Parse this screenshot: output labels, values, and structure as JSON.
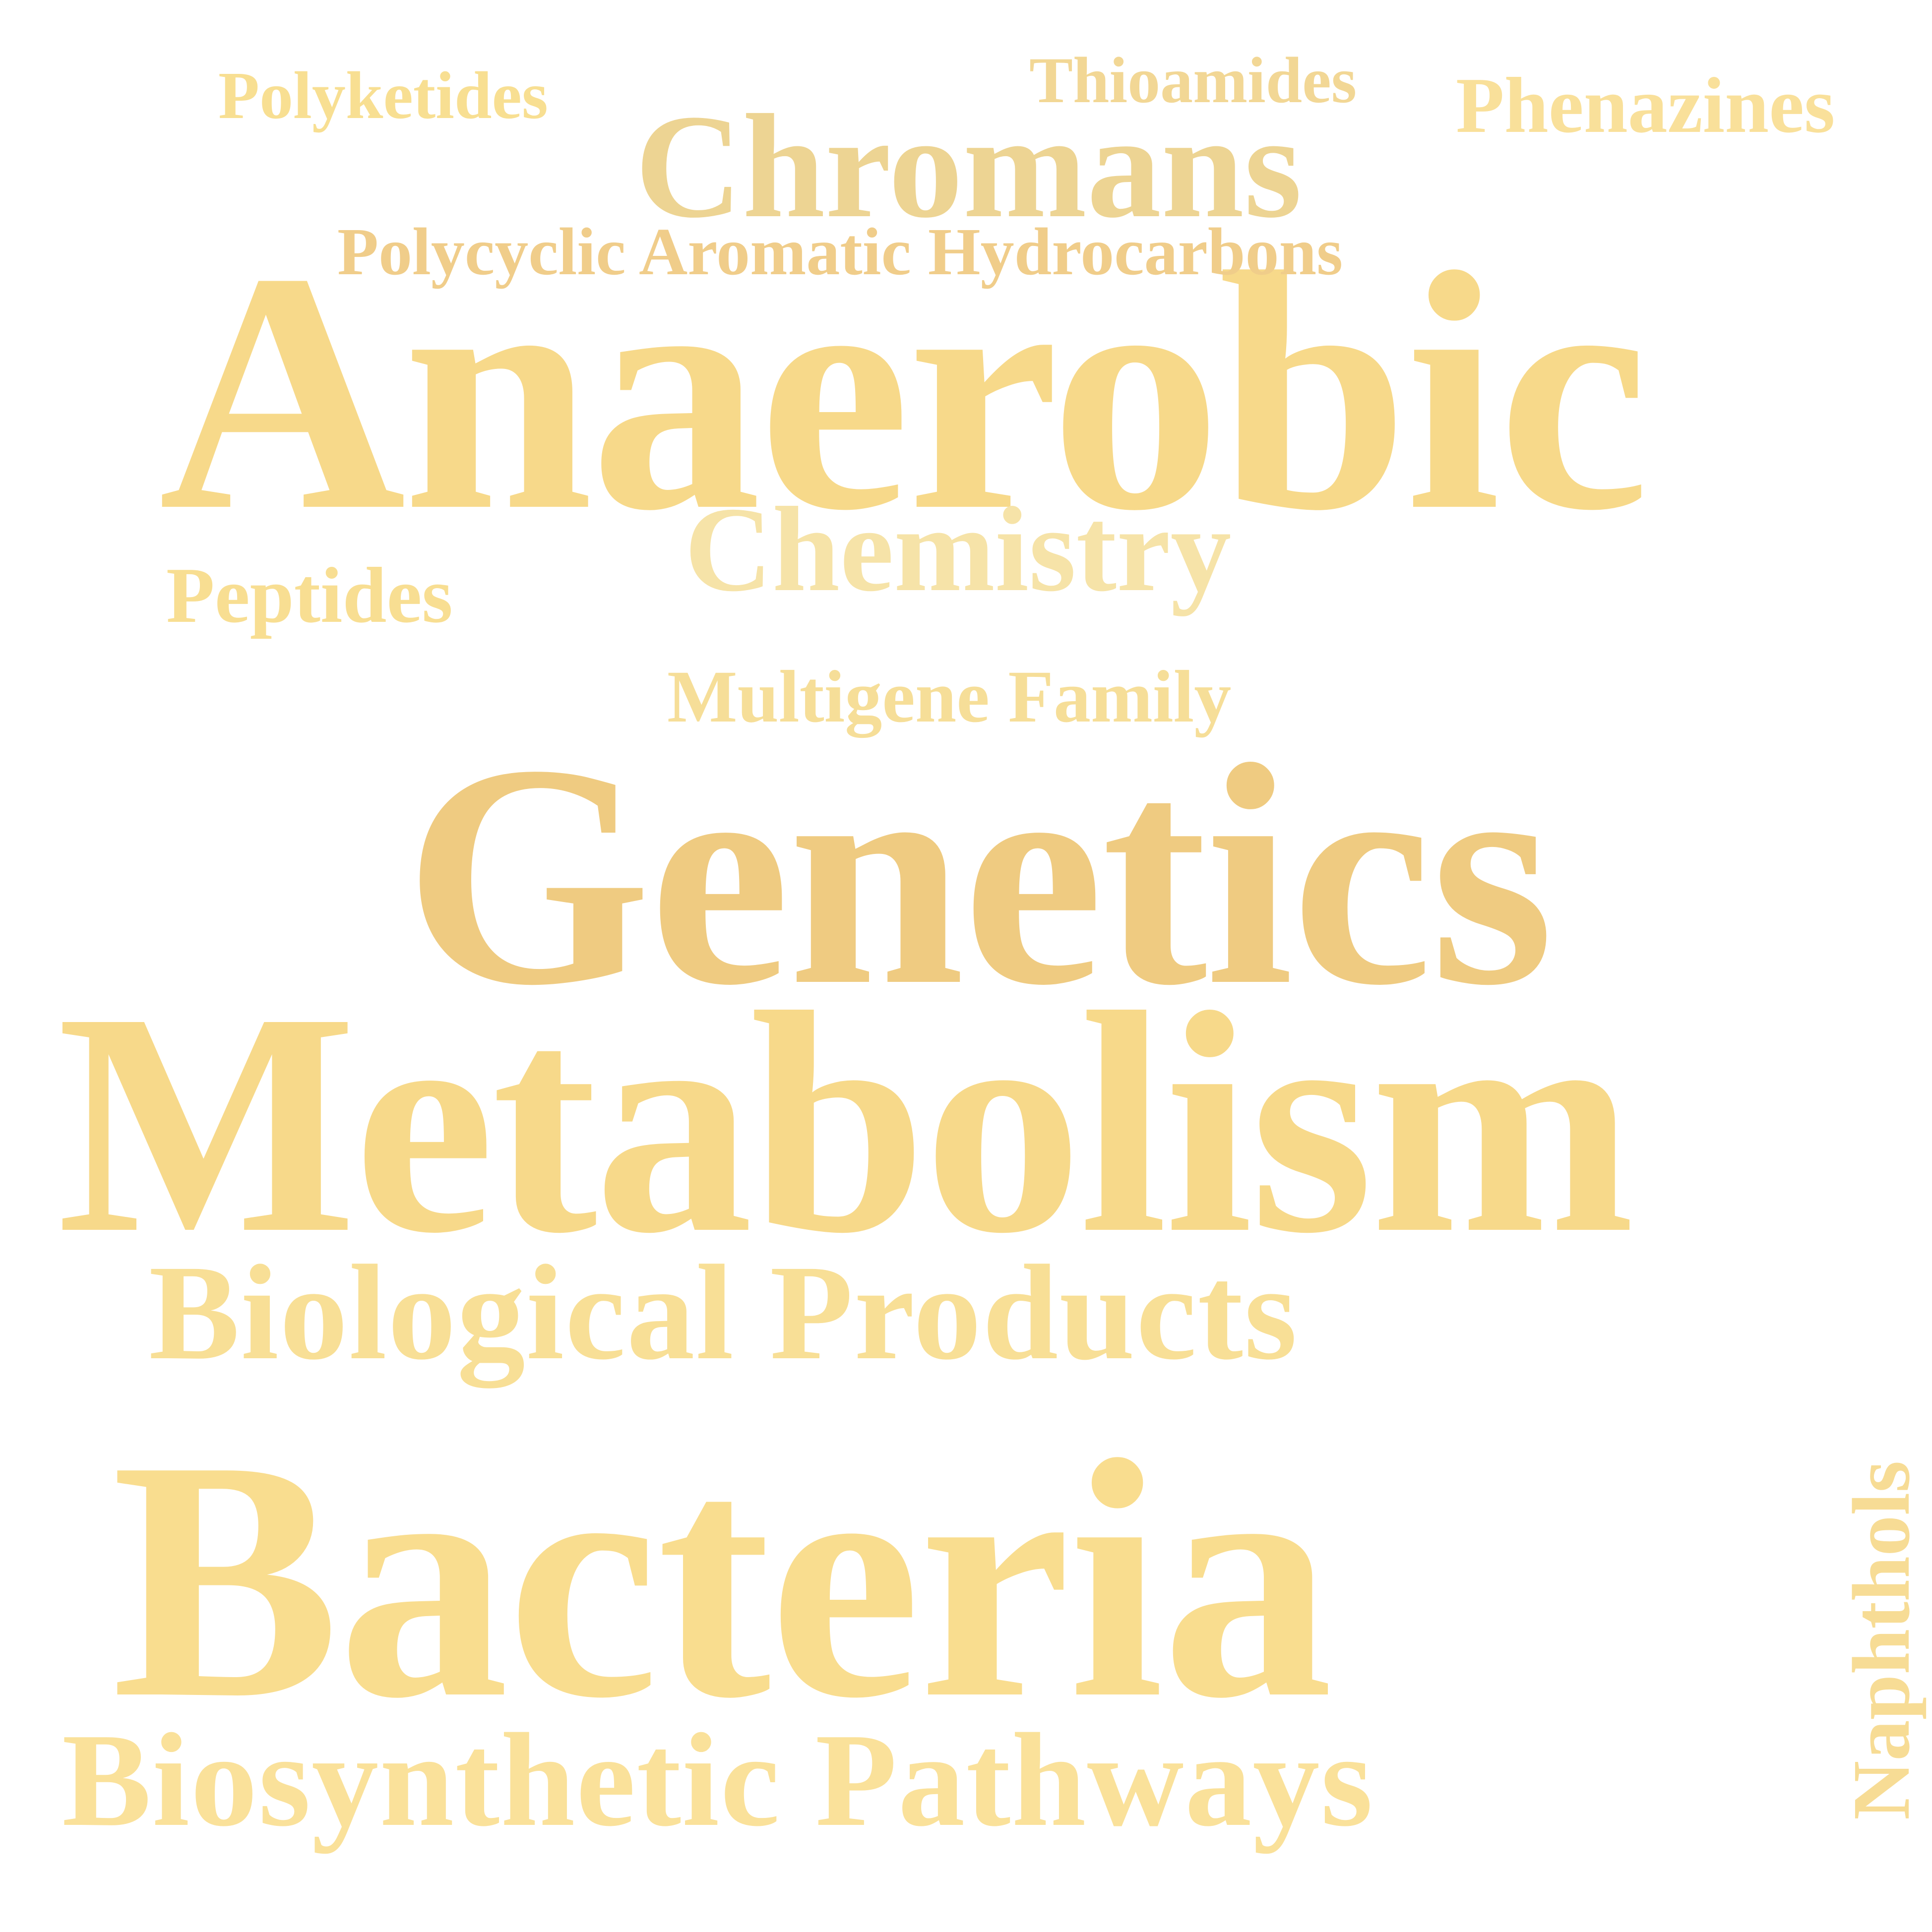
{
  "words": {
    "polyketides": "Polyketides",
    "thioamides": "Thioamides",
    "phenazines": "Phenazines",
    "chromans": "Chromans",
    "polycyclic_aromatic_hydrocarbons": "Polycyclic Aromatic Hydrocarbons",
    "anaerobic": "Anaerobic",
    "chemistry": "Chemistry",
    "peptides": "Peptides",
    "multigene_family": "Multigene Family",
    "genetics": "Genetics",
    "metabolism": "Metabolism",
    "biological_products": "Biological Products",
    "bacteria": "Bacteria",
    "biosynthetic_pathways": "Biosynthetic Pathways",
    "naphthols": "Naphthols"
  },
  "colors": {
    "background": "#ffffff",
    "polyketides": "#f8df92",
    "thioamides": "#f2d795",
    "phenazines": "#f9e09a",
    "chromans": "#edd493",
    "polycyclic_aromatic_hydrocarbons": "#f0cd8a",
    "anaerobic": "#f7d98a",
    "chemistry": "#f6e3a8",
    "peptides": "#f8de92",
    "multigene_family": "#f6de98",
    "genetics": "#efcb81",
    "metabolism": "#f7d98a",
    "biological_products": "#f8df96",
    "bacteria": "#f9dd8f",
    "biosynthetic_pathways": "#fae19a",
    "naphthols": "#f7dc95"
  }
}
